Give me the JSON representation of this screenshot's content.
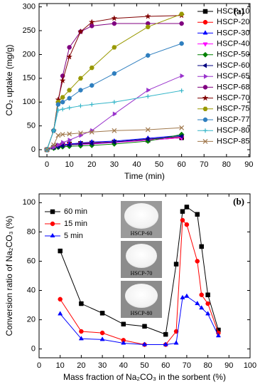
{
  "chart_data": [
    {
      "type": "line",
      "annotation": "(a)",
      "xlabel": "Time (min)",
      "ylabel": "CO₂ uptake (mg/g)",
      "x": [
        0,
        3,
        5,
        7,
        10,
        15,
        20,
        30,
        45,
        60
      ],
      "xlim": [
        -3.5,
        90.5
      ],
      "xticks": [
        0,
        10,
        20,
        30,
        40,
        50,
        60,
        70,
        80,
        90
      ],
      "ylim": [
        -15,
        307
      ],
      "yticks": [
        0,
        50,
        100,
        150,
        200,
        250,
        300
      ],
      "legend": "right",
      "series": [
        {
          "name": "HSCP-10",
          "color": "#000000",
          "marker": "square",
          "values": [
            0,
            5,
            8,
            10,
            12,
            13,
            14,
            16,
            20,
            25
          ]
        },
        {
          "name": "HSCP-20",
          "color": "#ff0000",
          "marker": "circle",
          "values": [
            0,
            5,
            8,
            10,
            12,
            13,
            14,
            16,
            22,
            27
          ]
        },
        {
          "name": "HSCP-30",
          "color": "#0000ff",
          "marker": "triangle-up",
          "values": [
            0,
            5,
            8,
            10,
            12,
            14,
            16,
            18,
            24,
            30
          ]
        },
        {
          "name": "HSCP-40",
          "color": "#ff00ff",
          "marker": "triangle-down",
          "values": [
            0,
            4,
            6,
            8,
            10,
            11,
            12,
            15,
            20,
            25
          ]
        },
        {
          "name": "HSCP-50",
          "color": "#008000",
          "marker": "diamond",
          "values": [
            0,
            3,
            5,
            6,
            7,
            8,
            9,
            12,
            18,
            32
          ]
        },
        {
          "name": "HSCP-60",
          "color": "#000080",
          "marker": "triangle-left",
          "values": [
            0,
            4,
            6,
            8,
            10,
            12,
            13,
            16,
            22,
            28
          ]
        },
        {
          "name": "HSCP-65",
          "color": "#9932cc",
          "marker": "triangle-right",
          "values": [
            0,
            5,
            10,
            15,
            20,
            30,
            40,
            75,
            125,
            155
          ]
        },
        {
          "name": "HSCP-68",
          "color": "#800080",
          "marker": "circle",
          "values": [
            0,
            40,
            100,
            155,
            215,
            248,
            260,
            265,
            265,
            265
          ]
        },
        {
          "name": "HSCP-70",
          "color": "#800000",
          "marker": "star",
          "values": [
            0,
            40,
            105,
            145,
            195,
            248,
            268,
            276,
            280,
            282
          ]
        },
        {
          "name": "HSCP-75",
          "color": "#999900",
          "marker": "hexagon",
          "values": [
            0,
            40,
            100,
            110,
            125,
            150,
            172,
            215,
            258,
            285
          ]
        },
        {
          "name": "HSCP-77",
          "color": "#2f7fbf",
          "marker": "circle",
          "values": [
            0,
            40,
            95,
            100,
            108,
            125,
            135,
            160,
            198,
            223
          ]
        },
        {
          "name": "HSCP-80",
          "color": "#33b5c8",
          "marker": "plus",
          "values": [
            0,
            40,
            83,
            85,
            88,
            92,
            95,
            100,
            112,
            124
          ]
        },
        {
          "name": "HSCP-85",
          "color": "#a0784c",
          "marker": "x",
          "values": [
            0,
            10,
            30,
            32,
            33,
            35,
            37,
            40,
            42,
            46
          ]
        }
      ]
    },
    {
      "type": "line",
      "annotation": "(b)",
      "xlabel": "Mass fraction of Na₂CO₃ in the sorbent (%)",
      "ylabel": "Conversion ratio of Na₂CO₃ (%)",
      "x": [
        10,
        20,
        30,
        40,
        50,
        60,
        65,
        68,
        70,
        75,
        77,
        80,
        85
      ],
      "xlim": [
        0,
        100
      ],
      "xticks": [
        0,
        10,
        20,
        30,
        40,
        50,
        60,
        70,
        80,
        90,
        100
      ],
      "ylim": [
        -6,
        106
      ],
      "yticks": [
        0,
        20,
        40,
        60,
        80,
        100
      ],
      "legend": "upper left",
      "image_labels": [
        "HSCP-60",
        "HSCP-70",
        "HSCP-80"
      ],
      "series": [
        {
          "name": "60 min",
          "color": "#000000",
          "marker": "square",
          "values": [
            67,
            31,
            24.5,
            17,
            15.5,
            10,
            58,
            94,
            97,
            92,
            70,
            37,
            13
          ]
        },
        {
          "name": "15 min",
          "color": "#ff0000",
          "marker": "circle",
          "values": [
            34,
            12,
            11,
            6,
            3,
            3,
            12,
            88,
            85,
            60,
            37,
            31,
            11
          ]
        },
        {
          "name": "5 min",
          "color": "#0000ff",
          "marker": "triangle-up",
          "values": [
            24,
            7,
            6.5,
            4,
            3,
            3,
            4,
            35,
            36,
            31,
            28,
            24,
            9
          ]
        }
      ]
    }
  ]
}
